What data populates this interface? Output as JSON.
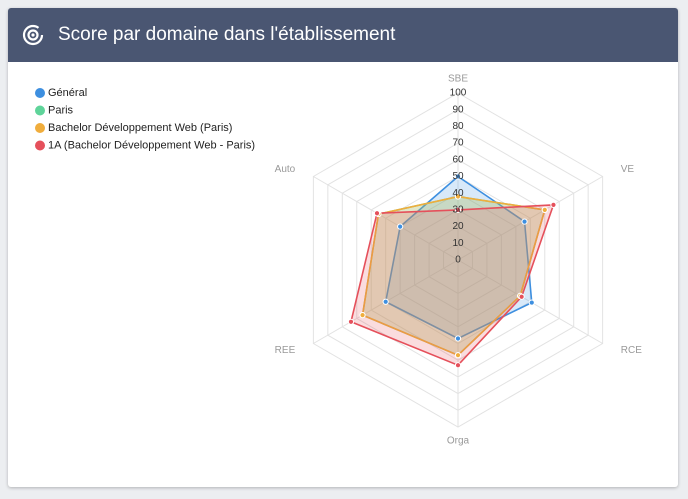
{
  "chart_data": {
    "type": "radar",
    "title": "Score par domaine dans l'établissement",
    "categories": [
      "SBE",
      "VE",
      "RCE",
      "Orga",
      "REE",
      "Auto"
    ],
    "series": [
      {
        "name": "Général",
        "color": "#3d8fe0",
        "values": [
          50,
          46,
          51,
          47,
          50,
          40
        ]
      },
      {
        "name": "Paris",
        "color": "#5fd49a",
        "values": [
          38,
          60,
          43,
          57,
          66,
          55
        ]
      },
      {
        "name": "Bachelor Développement Web (Paris)",
        "color": "#f0ad3c",
        "values": [
          38,
          60,
          43,
          57,
          66,
          55
        ]
      },
      {
        "name": "1A (Bachelor Développement Web - Paris)",
        "color": "#e5505b",
        "values": [
          30,
          66,
          44,
          63,
          74,
          56
        ]
      }
    ],
    "rlim": [
      0,
      100
    ],
    "rticks": [
      0,
      10,
      20,
      30,
      40,
      50,
      60,
      70,
      80,
      90,
      100
    ],
    "grid": true
  }
}
